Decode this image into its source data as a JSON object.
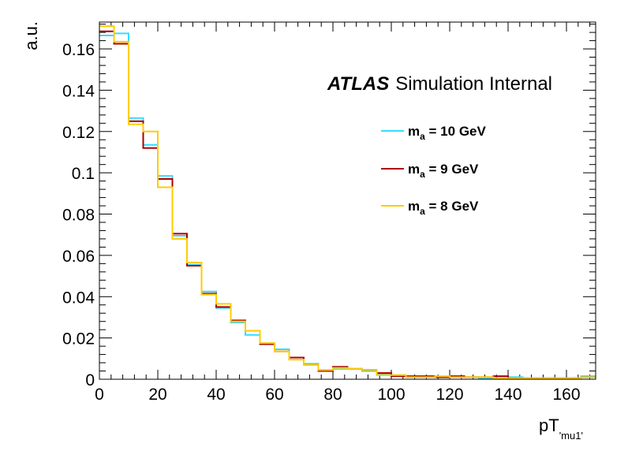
{
  "chart_data": {
    "type": "histogram",
    "xlabel": "pT",
    "xlabel_subscript": "'mu1'",
    "ylabel": "a.u.",
    "xlim": [
      0,
      170
    ],
    "ylim": [
      0,
      0.173
    ],
    "x_ticks": [
      0,
      20,
      40,
      60,
      80,
      100,
      120,
      140,
      160
    ],
    "y_ticks": [
      0,
      0.02,
      0.04,
      0.06,
      0.08,
      0.1,
      0.12,
      0.14,
      0.16
    ],
    "y_tick_labels": [
      "0",
      "0.02",
      "0.04",
      "0.06",
      "0.08",
      "0.1",
      "0.12",
      "0.14",
      "0.16"
    ],
    "bin_width": 5,
    "bin_edges_start": 0,
    "annotation": {
      "bold_italic": "ATLAS",
      "text": "Simulation Internal"
    },
    "legend_position": "top-right",
    "series": [
      {
        "name": "m_a = 10 GeV",
        "label_main": "m",
        "label_sub": "a",
        "label_rest": " = 10 GeV",
        "color": "#33ddff",
        "values": [
          0.1665,
          0.1675,
          0.1265,
          0.1135,
          0.0985,
          0.0695,
          0.0555,
          0.0425,
          0.0345,
          0.0275,
          0.0215,
          0.0175,
          0.0145,
          0.0105,
          0.0075,
          0.0045,
          0.005,
          0.005,
          0.004,
          0.0025,
          0.002,
          0.001,
          0.001,
          0.001,
          0.0015,
          0.001,
          0.0005,
          0.0005,
          0.001,
          0.0005,
          0.0005,
          0.0005,
          0.0005,
          0.0015
        ]
      },
      {
        "name": "m_a = 9 GeV",
        "label_main": "m",
        "label_sub": "a",
        "label_rest": " = 9 GeV",
        "color": "#aa0000",
        "values": [
          0.1685,
          0.1625,
          0.125,
          0.112,
          0.097,
          0.0705,
          0.055,
          0.0415,
          0.035,
          0.0285,
          0.0235,
          0.017,
          0.0135,
          0.0105,
          0.007,
          0.004,
          0.006,
          0.005,
          0.0045,
          0.003,
          0.0015,
          0.0015,
          0.0015,
          0.001,
          0.0015,
          0.001,
          0.001,
          0.0015,
          0.0005,
          0.0005,
          0.0005,
          0.0005,
          0.0005,
          0.001
        ]
      },
      {
        "name": "m_a = 8 GeV",
        "label_main": "m",
        "label_sub": "a",
        "label_rest": " = 8 GeV",
        "color": "#ffcc00",
        "values": [
          0.171,
          0.1635,
          0.1235,
          0.12,
          0.093,
          0.068,
          0.0565,
          0.041,
          0.0365,
          0.028,
          0.0235,
          0.0175,
          0.0135,
          0.0095,
          0.007,
          0.0045,
          0.0055,
          0.005,
          0.0045,
          0.002,
          0.002,
          0.001,
          0.001,
          0.0015,
          0.001,
          0.001,
          0.001,
          0.0005,
          0.0005,
          0.0005,
          0.0005,
          0.0005,
          0.0005,
          0.001
        ]
      }
    ]
  }
}
